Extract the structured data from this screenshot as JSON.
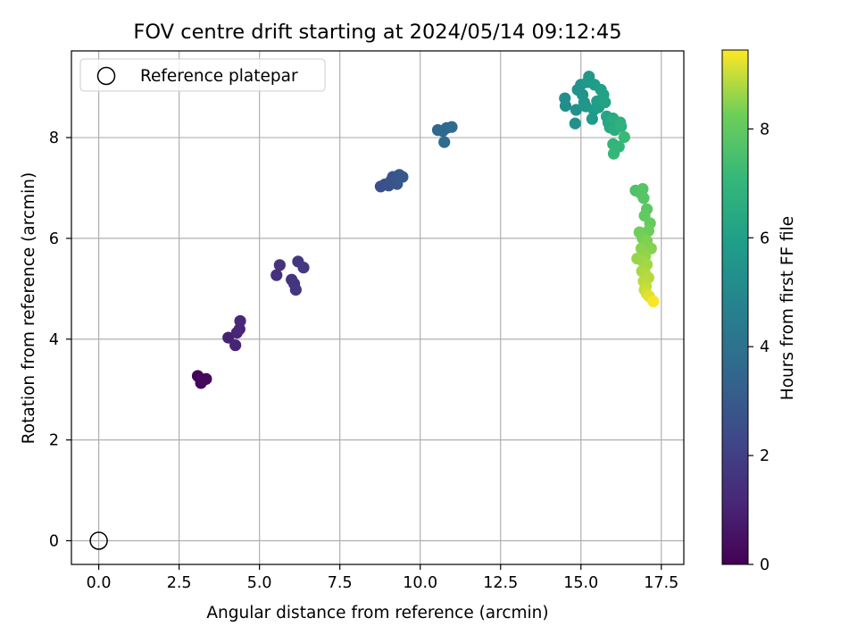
{
  "chart_data": {
    "type": "scatter",
    "title": "FOV centre drift starting at 2024/05/14 09:12:45",
    "xlabel": "Angular distance from reference (arcmin)",
    "ylabel": "Rotation from reference (arcmin)",
    "xlim": [
      -0.85,
      18.2
    ],
    "ylim": [
      -0.47,
      9.72
    ],
    "xticks": [
      0.0,
      2.5,
      5.0,
      7.5,
      10.0,
      12.5,
      15.0,
      17.5
    ],
    "xtick_labels": [
      "0.0",
      "2.5",
      "5.0",
      "7.5",
      "10.0",
      "12.5",
      "15.0",
      "17.5"
    ],
    "yticks": [
      0,
      2,
      4,
      6,
      8
    ],
    "ytick_labels": [
      "0",
      "2",
      "4",
      "6",
      "8"
    ],
    "grid": true,
    "legend": {
      "position": "top-left",
      "entries": [
        "Reference platepar"
      ]
    },
    "reference_point": {
      "x": 0.0,
      "y": 0.0,
      "label": "Reference platepar"
    },
    "colorbar": {
      "label": "Hours from first FF file",
      "colormap": "viridis",
      "range": [
        0,
        9.45
      ],
      "ticks": [
        0,
        2,
        4,
        6,
        8
      ],
      "tick_labels": [
        "0",
        "2",
        "4",
        "6",
        "8"
      ]
    },
    "points": [
      {
        "x": 3.08,
        "y": 3.27,
        "h": 0.1
      },
      {
        "x": 3.18,
        "y": 3.13,
        "h": 0.15
      },
      {
        "x": 3.22,
        "y": 3.2,
        "h": 0.2
      },
      {
        "x": 3.34,
        "y": 3.21,
        "h": 0.25
      },
      {
        "x": 4.03,
        "y": 4.03,
        "h": 1.0
      },
      {
        "x": 4.25,
        "y": 3.88,
        "h": 1.05
      },
      {
        "x": 4.3,
        "y": 4.13,
        "h": 1.1
      },
      {
        "x": 4.38,
        "y": 4.2,
        "h": 1.15
      },
      {
        "x": 4.4,
        "y": 4.36,
        "h": 1.2
      },
      {
        "x": 5.53,
        "y": 5.27,
        "h": 1.5
      },
      {
        "x": 5.63,
        "y": 5.47,
        "h": 1.55
      },
      {
        "x": 6.0,
        "y": 5.18,
        "h": 1.6
      },
      {
        "x": 6.08,
        "y": 5.1,
        "h": 1.65
      },
      {
        "x": 6.13,
        "y": 4.98,
        "h": 1.7
      },
      {
        "x": 6.2,
        "y": 5.54,
        "h": 1.75
      },
      {
        "x": 6.37,
        "y": 5.42,
        "h": 1.8
      },
      {
        "x": 8.77,
        "y": 7.03,
        "h": 2.55
      },
      {
        "x": 8.9,
        "y": 7.07,
        "h": 2.6
      },
      {
        "x": 9.02,
        "y": 7.05,
        "h": 2.65
      },
      {
        "x": 9.1,
        "y": 7.15,
        "h": 2.7
      },
      {
        "x": 9.15,
        "y": 7.22,
        "h": 2.75
      },
      {
        "x": 9.28,
        "y": 7.08,
        "h": 2.8
      },
      {
        "x": 9.35,
        "y": 7.26,
        "h": 2.85
      },
      {
        "x": 9.45,
        "y": 7.22,
        "h": 2.9
      },
      {
        "x": 10.55,
        "y": 8.15,
        "h": 3.5
      },
      {
        "x": 10.7,
        "y": 8.13,
        "h": 3.55
      },
      {
        "x": 10.82,
        "y": 8.19,
        "h": 3.6
      },
      {
        "x": 10.98,
        "y": 8.21,
        "h": 3.65
      },
      {
        "x": 10.75,
        "y": 7.91,
        "h": 3.7
      },
      {
        "x": 14.5,
        "y": 8.78,
        "h": 5.2
      },
      {
        "x": 14.52,
        "y": 8.63,
        "h": 5.25
      },
      {
        "x": 14.82,
        "y": 8.28,
        "h": 5.3
      },
      {
        "x": 14.85,
        "y": 8.55,
        "h": 5.35
      },
      {
        "x": 14.9,
        "y": 8.95,
        "h": 5.4
      },
      {
        "x": 15.0,
        "y": 9.05,
        "h": 5.45
      },
      {
        "x": 15.05,
        "y": 8.85,
        "h": 5.5
      },
      {
        "x": 15.1,
        "y": 8.7,
        "h": 5.55
      },
      {
        "x": 15.15,
        "y": 8.62,
        "h": 5.6
      },
      {
        "x": 15.2,
        "y": 9.1,
        "h": 5.65
      },
      {
        "x": 15.25,
        "y": 9.21,
        "h": 5.7
      },
      {
        "x": 15.35,
        "y": 8.37,
        "h": 5.75
      },
      {
        "x": 15.4,
        "y": 8.55,
        "h": 5.8
      },
      {
        "x": 15.42,
        "y": 9.05,
        "h": 5.85
      },
      {
        "x": 15.5,
        "y": 8.72,
        "h": 5.9
      },
      {
        "x": 15.55,
        "y": 8.6,
        "h": 5.95
      },
      {
        "x": 15.62,
        "y": 8.95,
        "h": 6.0
      },
      {
        "x": 15.7,
        "y": 8.85,
        "h": 6.05
      },
      {
        "x": 15.75,
        "y": 8.7,
        "h": 6.1
      },
      {
        "x": 15.8,
        "y": 8.42,
        "h": 6.2
      },
      {
        "x": 15.85,
        "y": 8.3,
        "h": 6.3
      },
      {
        "x": 15.9,
        "y": 8.2,
        "h": 6.4
      },
      {
        "x": 16.0,
        "y": 8.38,
        "h": 6.5
      },
      {
        "x": 16.05,
        "y": 8.15,
        "h": 6.6
      },
      {
        "x": 16.0,
        "y": 7.87,
        "h": 6.9
      },
      {
        "x": 16.02,
        "y": 7.68,
        "h": 7.1
      },
      {
        "x": 16.18,
        "y": 7.82,
        "h": 7.0
      },
      {
        "x": 16.22,
        "y": 8.3,
        "h": 6.7
      },
      {
        "x": 16.25,
        "y": 8.22,
        "h": 6.8
      },
      {
        "x": 16.35,
        "y": 8.01,
        "h": 7.2
      },
      {
        "x": 16.7,
        "y": 6.95,
        "h": 7.6
      },
      {
        "x": 16.85,
        "y": 6.9,
        "h": 7.7
      },
      {
        "x": 16.92,
        "y": 6.98,
        "h": 7.75
      },
      {
        "x": 16.95,
        "y": 6.8,
        "h": 7.8
      },
      {
        "x": 17.05,
        "y": 6.58,
        "h": 7.9
      },
      {
        "x": 16.98,
        "y": 6.45,
        "h": 8.0
      },
      {
        "x": 17.15,
        "y": 6.3,
        "h": 8.1
      },
      {
        "x": 17.1,
        "y": 6.15,
        "h": 8.2
      },
      {
        "x": 16.82,
        "y": 6.12,
        "h": 8.25
      },
      {
        "x": 16.92,
        "y": 6.0,
        "h": 8.3
      },
      {
        "x": 17.05,
        "y": 5.95,
        "h": 8.4
      },
      {
        "x": 17.18,
        "y": 5.8,
        "h": 8.45
      },
      {
        "x": 16.88,
        "y": 5.8,
        "h": 8.5
      },
      {
        "x": 17.0,
        "y": 5.65,
        "h": 8.55
      },
      {
        "x": 16.75,
        "y": 5.6,
        "h": 8.6
      },
      {
        "x": 16.92,
        "y": 5.55,
        "h": 8.65
      },
      {
        "x": 17.05,
        "y": 5.48,
        "h": 8.7
      },
      {
        "x": 16.9,
        "y": 5.35,
        "h": 8.75
      },
      {
        "x": 17.0,
        "y": 5.3,
        "h": 8.8
      },
      {
        "x": 17.1,
        "y": 5.22,
        "h": 8.85
      },
      {
        "x": 16.95,
        "y": 5.15,
        "h": 8.9
      },
      {
        "x": 17.02,
        "y": 5.05,
        "h": 8.95
      },
      {
        "x": 16.98,
        "y": 4.98,
        "h": 9.0
      },
      {
        "x": 17.05,
        "y": 4.9,
        "h": 9.1
      },
      {
        "x": 17.12,
        "y": 4.85,
        "h": 9.2
      },
      {
        "x": 17.25,
        "y": 4.75,
        "h": 9.4
      }
    ]
  }
}
